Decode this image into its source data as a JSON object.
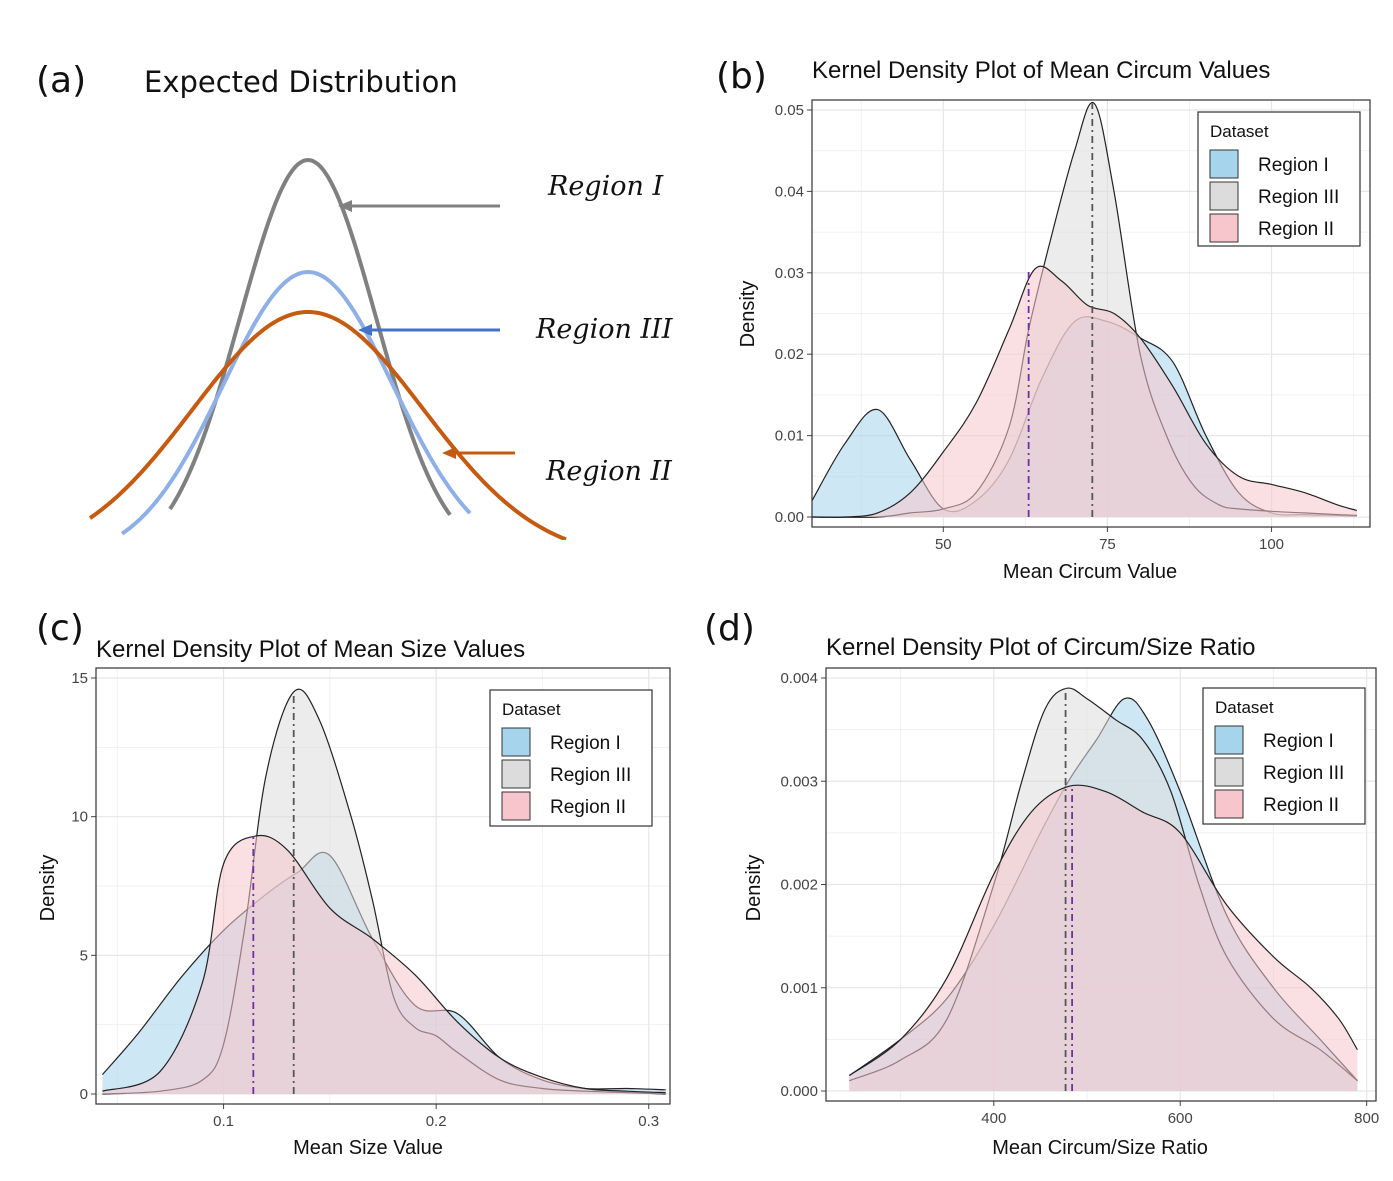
{
  "panel_a": {
    "label": "(a)",
    "title": "Expected Distribution",
    "annotations": [
      "Region I",
      "Region III",
      "Region II"
    ],
    "curves": [
      {
        "name": "Region I",
        "color": "#808080",
        "amplitude": 1.0,
        "sd": 1.0
      },
      {
        "name": "Region III",
        "color": "#8fb0e6",
        "amplitude": 0.72,
        "sd": 1.25
      },
      {
        "name": "Region II",
        "color": "#c55a11",
        "amplitude": 0.62,
        "sd": 1.7
      }
    ],
    "arrow_colors": [
      "#808080",
      "#4472c4",
      "#c55a11"
    ]
  },
  "chart_data": [
    {
      "id": "b",
      "label": "(b)",
      "type": "area",
      "title": "Kernel Density Plot of Mean Circum Values",
      "xlabel": "Mean Circum Value",
      "ylabel": "Density",
      "xlim": [
        30,
        115
      ],
      "ylim": [
        0,
        0.05
      ],
      "xticks": [
        50,
        75,
        100
      ],
      "yticks": [
        0,
        0.01,
        0.02,
        0.03,
        0.04,
        0.05
      ],
      "ytick_labels": [
        "0.00",
        "0.01",
        "0.02",
        "0.03",
        "0.04",
        "0.05"
      ],
      "legend_title": "Dataset",
      "legend_position": "top-right",
      "grid": true,
      "series": [
        {
          "name": "Region I",
          "color": "#a6d4ec",
          "x": [
            30,
            35,
            40,
            45,
            50,
            55,
            60,
            65,
            70,
            75,
            80,
            85,
            90,
            95,
            100,
            105,
            110,
            113
          ],
          "y": [
            0.002,
            0.009,
            0.0132,
            0.007,
            0.001,
            0.002,
            0.007,
            0.017,
            0.024,
            0.024,
            0.022,
            0.019,
            0.01,
            0.003,
            0.0005,
            0.0003,
            0.0002,
            0.0001
          ]
        },
        {
          "name": "Region III",
          "color": "#dcdcdc",
          "x": [
            30,
            40,
            45,
            50,
            55,
            60,
            63,
            66,
            70,
            73,
            76,
            80,
            84,
            88,
            92,
            95,
            100,
            105,
            110,
            113
          ],
          "y": [
            0,
            0,
            0.0005,
            0.001,
            0.003,
            0.011,
            0.023,
            0.033,
            0.045,
            0.0508,
            0.04,
            0.02,
            0.01,
            0.004,
            0.0015,
            0.001,
            0.0007,
            0.0005,
            0.0003,
            0.0002
          ]
        },
        {
          "name": "Region II",
          "color": "#f6c6cc",
          "x": [
            30,
            35,
            40,
            45,
            50,
            55,
            60,
            64,
            68,
            72,
            76,
            80,
            85,
            90,
            95,
            100,
            105,
            110,
            113
          ],
          "y": [
            0,
            0,
            0.0005,
            0.003,
            0.008,
            0.014,
            0.023,
            0.0305,
            0.029,
            0.026,
            0.025,
            0.022,
            0.016,
            0.009,
            0.005,
            0.004,
            0.003,
            0.0015,
            0.0008
          ]
        }
      ],
      "vlines": [
        {
          "x": 72.7,
          "color": "#555555"
        },
        {
          "x": 63,
          "color": "#7030a0"
        }
      ]
    },
    {
      "id": "c",
      "label": "(c)",
      "type": "area",
      "title": "Kernel Density Plot of Mean Size Values",
      "xlabel": "Mean Size Value",
      "ylabel": "Density",
      "xlim": [
        0.04,
        0.31
      ],
      "ylim": [
        0,
        15
      ],
      "xticks": [
        0.1,
        0.2,
        0.3
      ],
      "yticks": [
        0,
        5,
        10,
        15
      ],
      "xtick_labels": [
        "0.1",
        "0.2",
        "0.3"
      ],
      "ytick_labels": [
        "0",
        "5",
        "10",
        "15"
      ],
      "legend_title": "Dataset",
      "legend_position": "top-right",
      "grid": true,
      "series": [
        {
          "name": "Region I",
          "color": "#a6d4ec",
          "x": [
            0.043,
            0.06,
            0.08,
            0.1,
            0.12,
            0.135,
            0.15,
            0.17,
            0.19,
            0.21,
            0.23,
            0.25,
            0.27,
            0.29,
            0.308
          ],
          "y": [
            0.7,
            2.2,
            4.2,
            5.9,
            7.2,
            8.0,
            8.6,
            5.6,
            3.2,
            2.9,
            1.3,
            0.5,
            0.2,
            0.2,
            0.15
          ]
        },
        {
          "name": "Region III",
          "color": "#dcdcdc",
          "x": [
            0.043,
            0.07,
            0.09,
            0.1,
            0.11,
            0.12,
            0.133,
            0.145,
            0.16,
            0.17,
            0.18,
            0.19,
            0.2,
            0.21,
            0.23,
            0.25,
            0.27,
            0.29,
            0.308
          ],
          "y": [
            0,
            0.1,
            0.5,
            1.8,
            6.0,
            11.5,
            14.5,
            13.5,
            10.0,
            7.0,
            3.5,
            2.4,
            2.1,
            1.5,
            0.5,
            0.2,
            0.1,
            0.05,
            0
          ]
        },
        {
          "name": "Region II",
          "color": "#f6c6cc",
          "x": [
            0.043,
            0.07,
            0.09,
            0.1,
            0.115,
            0.13,
            0.15,
            0.17,
            0.19,
            0.21,
            0.23,
            0.25,
            0.27,
            0.29,
            0.308
          ],
          "y": [
            0.1,
            0.8,
            4.0,
            8.3,
            9.3,
            8.8,
            6.7,
            5.6,
            4.3,
            2.6,
            1.3,
            0.6,
            0.2,
            0.1,
            0.05
          ]
        }
      ],
      "vlines": [
        {
          "x": 0.133,
          "color": "#555555"
        },
        {
          "x": 0.114,
          "color": "#7030a0"
        }
      ]
    },
    {
      "id": "d",
      "label": "(d)",
      "type": "area",
      "title": "Kernel Density Plot of Circum/Size Ratio",
      "xlabel": "Mean Circum/Size Ratio",
      "ylabel": "Density",
      "xlim": [
        220,
        810
      ],
      "ylim": [
        0,
        0.004
      ],
      "xticks": [
        400,
        600,
        800
      ],
      "yticks": [
        0,
        0.001,
        0.002,
        0.003,
        0.004
      ],
      "ytick_labels": [
        "0.000",
        "0.001",
        "0.002",
        "0.003",
        "0.004"
      ],
      "legend_title": "Dataset",
      "legend_position": "top-right",
      "grid": true,
      "series": [
        {
          "name": "Region I",
          "color": "#a6d4ec",
          "x": [
            245,
            300,
            350,
            400,
            450,
            480,
            510,
            540,
            565,
            600,
            650,
            700,
            750,
            790
          ],
          "y": [
            0.00015,
            0.0005,
            0.0009,
            0.0016,
            0.0025,
            0.003,
            0.0034,
            0.0038,
            0.0036,
            0.0029,
            0.0017,
            0.001,
            0.0005,
            0.0001
          ]
        },
        {
          "name": "Region III",
          "color": "#dcdcdc",
          "x": [
            245,
            300,
            350,
            400,
            430,
            455,
            478,
            500,
            530,
            560,
            590,
            620,
            650,
            700,
            750,
            790
          ],
          "y": [
            0.0001,
            0.0003,
            0.0007,
            0.002,
            0.003,
            0.0037,
            0.0039,
            0.0038,
            0.0036,
            0.0034,
            0.0029,
            0.002,
            0.0013,
            0.0007,
            0.0004,
            0.0001
          ]
        },
        {
          "name": "Region II",
          "color": "#f6c6cc",
          "x": [
            245,
            300,
            350,
            400,
            440,
            480,
            520,
            560,
            600,
            650,
            700,
            740,
            770,
            790
          ],
          "y": [
            0.00015,
            0.0005,
            0.0011,
            0.0021,
            0.0027,
            0.00295,
            0.0029,
            0.0027,
            0.0025,
            0.0018,
            0.0013,
            0.001,
            0.0007,
            0.0004
          ]
        }
      ],
      "vlines": [
        {
          "x": 477,
          "color": "#555555"
        },
        {
          "x": 484,
          "color": "#7030a0"
        }
      ]
    }
  ]
}
